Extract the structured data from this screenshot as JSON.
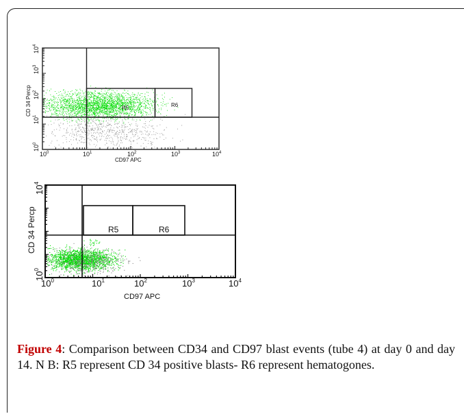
{
  "figure": {
    "panels": [
      {
        "x_axis_label": "CD97 APC",
        "y_axis_label": "CD 34 Percp",
        "regions": [
          {
            "name": "R5"
          },
          {
            "name": "R6"
          }
        ],
        "x_ticks": [
          "10^0",
          "10^1",
          "10^2",
          "10^3",
          "10^4"
        ],
        "y_ticks": [
          "10^0",
          "10^1",
          "10^2",
          "10^3",
          "10^4"
        ]
      },
      {
        "x_axis_label": "CD97 APC",
        "y_axis_label": "CD 34 Percp",
        "regions": [
          {
            "name": "R5"
          },
          {
            "name": "R6"
          }
        ],
        "x_ticks": [
          "10^0",
          "10^1",
          "10^2",
          "10^3",
          "10^4"
        ],
        "y_ticks": [
          "10^0",
          "10^1",
          "10^2",
          "10^3",
          "10^4"
        ]
      }
    ]
  },
  "caption": {
    "label": "Figure 4",
    "text": ": Comparison between CD34 and CD97 blast events (tube 4) at day 0 and day 14. N B: R5 represent CD 34 positive blasts- R6 represent hematogones."
  },
  "chart_data": [
    {
      "type": "scatter",
      "title": "",
      "xlabel": "CD97 APC",
      "ylabel": "CD 34 Percp",
      "x_scale": "log",
      "y_scale": "log",
      "xlim": [
        1,
        10000
      ],
      "ylim": [
        1,
        10000
      ],
      "gates": [
        {
          "name": "R5",
          "x_range": [
            10,
            400
          ],
          "y_range": [
            15,
            200
          ]
        },
        {
          "name": "R6",
          "x_range": [
            400,
            2500
          ],
          "y_range": [
            15,
            200
          ]
        }
      ],
      "quadrant_lines": {
        "x": 10,
        "y": 15
      },
      "populations": [
        {
          "color": "#00dd00",
          "x_range": [
            1,
            400
          ],
          "y_range": [
            15,
            200
          ],
          "density": "high"
        },
        {
          "color": "#888888",
          "x_range": [
            1,
            1000
          ],
          "y_range": [
            1,
            30
          ],
          "density": "low"
        }
      ]
    },
    {
      "type": "scatter",
      "title": "",
      "xlabel": "CD97 APC",
      "ylabel": "CD 34 Percp",
      "x_scale": "log",
      "y_scale": "log",
      "xlim": [
        1,
        10000
      ],
      "ylim": [
        1,
        10000
      ],
      "gates": [
        {
          "name": "R5",
          "x_range": [
            6,
            70
          ],
          "y_range": [
            15,
            110
          ]
        },
        {
          "name": "R6",
          "x_range": [
            70,
            1100
          ],
          "y_range": [
            15,
            110
          ]
        }
      ],
      "quadrant_lines": {
        "x": 6,
        "y": 15
      },
      "populations": [
        {
          "color": "#00dd00",
          "x_range": [
            1,
            30
          ],
          "y_range": [
            2,
            18
          ],
          "density": "high"
        },
        {
          "color": "#00dd00",
          "x_range": [
            6,
            18
          ],
          "y_range": [
            20,
            60
          ],
          "density": "very-low"
        },
        {
          "color": "#888888",
          "x_range": [
            1,
            60
          ],
          "y_range": [
            1,
            20
          ],
          "density": "low"
        }
      ]
    }
  ]
}
